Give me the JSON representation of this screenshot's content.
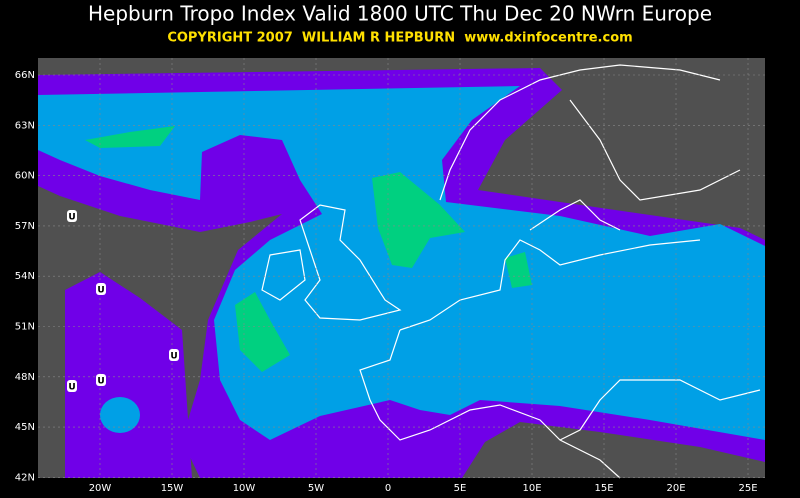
{
  "header": {
    "title": "Hepburn Tropo Index Valid 1800 UTC Thu Dec 20 NWrn Europe",
    "copyright": "COPYRIGHT 2007  WILLIAM R HEPBURN  www.dxinfocentre.com"
  },
  "map": {
    "lat_labels": [
      "66N",
      "63N",
      "60N",
      "57N",
      "54N",
      "51N",
      "48N",
      "45N",
      "42N"
    ],
    "lon_labels": [
      "20W",
      "15W",
      "10W",
      "5W",
      "0",
      "5E",
      "10E",
      "15E",
      "20E",
      "25E"
    ],
    "markers": [
      "U",
      "U",
      "U",
      "U",
      "U"
    ]
  }
}
